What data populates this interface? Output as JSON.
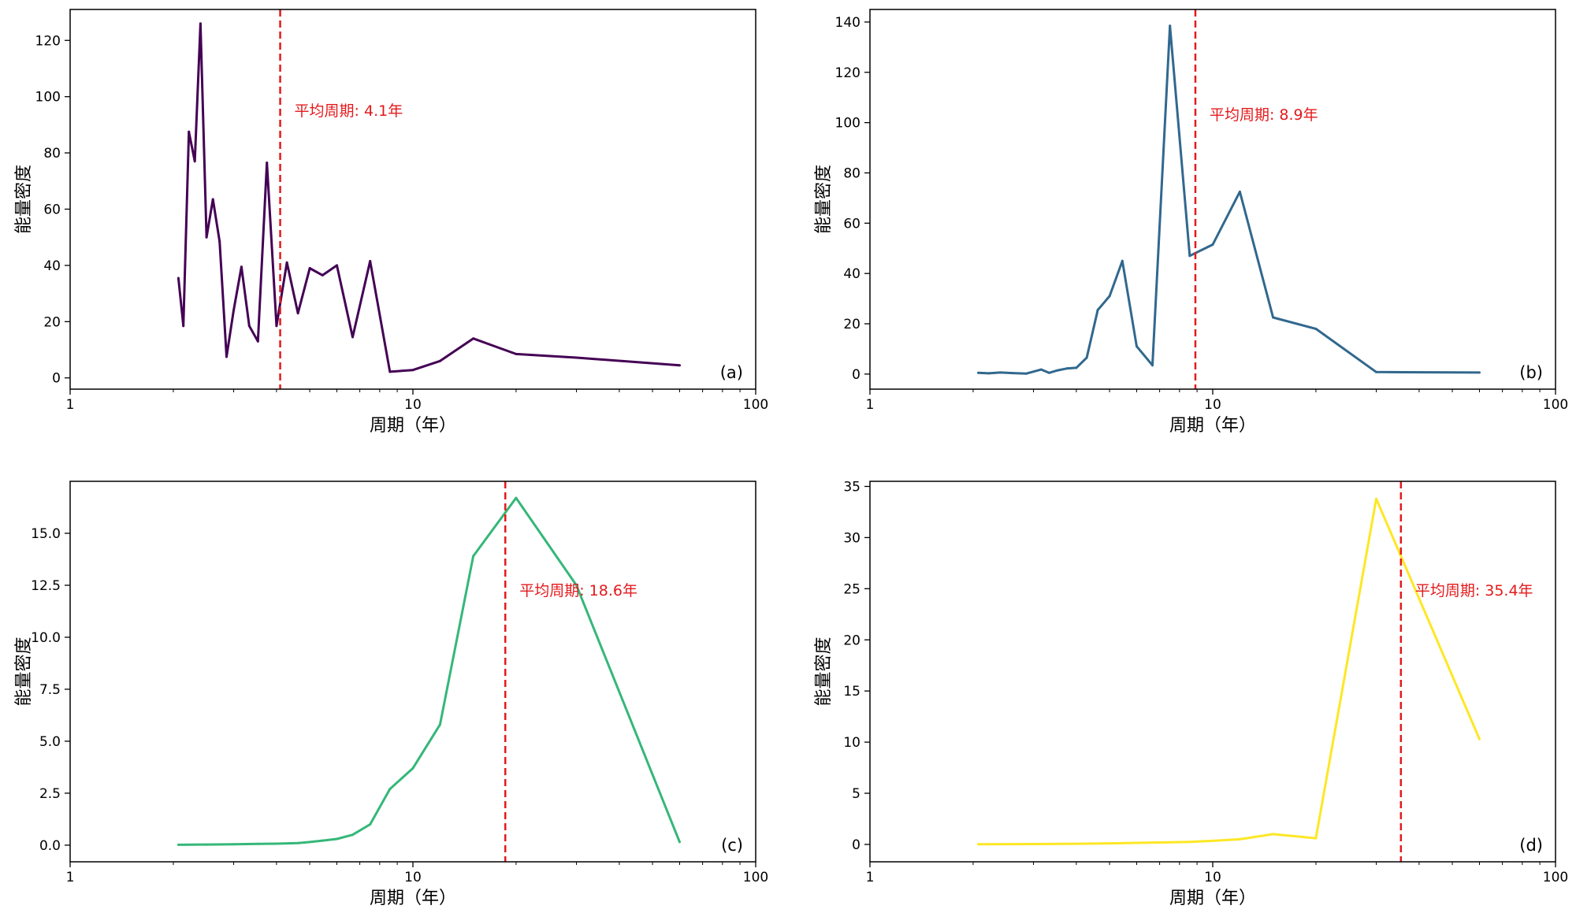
{
  "chart_data": [
    {
      "type": "line",
      "panel_label": "(a)",
      "xlabel": "周期（年）",
      "ylabel": "能量密度",
      "x_scale": "log",
      "xlim": [
        1,
        100
      ],
      "ylim": [
        -4,
        131
      ],
      "x_ticks": [
        1,
        10,
        100
      ],
      "x_tick_labels": [
        "1",
        "10",
        "100"
      ],
      "y_ticks": [
        0,
        20,
        40,
        60,
        80,
        100,
        120
      ],
      "y_tick_labels": [
        "0",
        "20",
        "40",
        "60",
        "80",
        "100",
        "120"
      ],
      "color": "#440154",
      "x": [
        2.07,
        2.14,
        2.22,
        2.31,
        2.4,
        2.5,
        2.61,
        2.73,
        2.86,
        3.0,
        3.16,
        3.33,
        3.53,
        3.75,
        4.0,
        4.29,
        4.62,
        5.0,
        5.45,
        6.0,
        6.67,
        7.5,
        8.57,
        10.0,
        12.0,
        15.0,
        20.0,
        30.0,
        60.0
      ],
      "y": [
        35.5,
        18.5,
        87.5,
        77,
        126,
        50,
        63.5,
        48.5,
        7.5,
        24,
        39.5,
        18.5,
        13,
        76.5,
        18.5,
        41,
        23,
        39,
        36.5,
        40,
        14.5,
        41.5,
        2.2,
        2.8,
        6,
        14,
        8.5,
        7.2,
        4.5
      ],
      "mean_period": 4.1,
      "mean_label": "平均周期: 4.1年"
    },
    {
      "type": "line",
      "panel_label": "(b)",
      "xlabel": "周期（年）",
      "ylabel": "能量密度",
      "x_scale": "log",
      "xlim": [
        1,
        100
      ],
      "ylim": [
        -6,
        145
      ],
      "x_ticks": [
        1,
        10,
        100
      ],
      "x_tick_labels": [
        "1",
        "10",
        "100"
      ],
      "y_ticks": [
        0,
        20,
        40,
        60,
        80,
        100,
        120,
        140
      ],
      "y_tick_labels": [
        "0",
        "20",
        "40",
        "60",
        "80",
        "100",
        "120",
        "140"
      ],
      "color": "#31688e",
      "x": [
        2.07,
        2.22,
        2.4,
        2.61,
        2.86,
        3.16,
        3.33,
        3.53,
        3.75,
        4.0,
        4.29,
        4.62,
        5.0,
        5.45,
        6.0,
        6.67,
        7.5,
        8.57,
        10.0,
        12.0,
        15.0,
        20.0,
        30.0,
        60.0
      ],
      "y": [
        0.5,
        0.3,
        0.6,
        0.4,
        0.2,
        1.8,
        0.5,
        1.5,
        2.2,
        2.5,
        6.5,
        25.5,
        31,
        45,
        11,
        3.5,
        138.5,
        47,
        51.5,
        72.5,
        22.5,
        18,
        0.8,
        0.6
      ],
      "mean_period": 8.9,
      "mean_label": "平均周期: 8.9年"
    },
    {
      "type": "line",
      "panel_label": "(c)",
      "xlabel": "周期（年）",
      "ylabel": "能量密度",
      "x_scale": "log",
      "xlim": [
        1,
        100
      ],
      "ylim": [
        -0.8,
        17.5
      ],
      "x_ticks": [
        1,
        10,
        100
      ],
      "x_tick_labels": [
        "1",
        "10",
        "100"
      ],
      "y_ticks": [
        0,
        2.5,
        5.0,
        7.5,
        10.0,
        12.5,
        15.0
      ],
      "y_tick_labels": [
        "0.0",
        "2.5",
        "5.0",
        "7.5",
        "10.0",
        "12.5",
        "15.0"
      ],
      "color": "#35b779",
      "x": [
        2.07,
        2.5,
        3.0,
        3.53,
        4.0,
        4.62,
        5.0,
        5.45,
        6.0,
        6.67,
        7.5,
        8.57,
        10.0,
        12.0,
        15.0,
        20.0,
        30.0,
        60.0
      ],
      "y": [
        0.02,
        0.03,
        0.04,
        0.06,
        0.07,
        0.1,
        0.15,
        0.22,
        0.3,
        0.5,
        1.0,
        2.7,
        3.7,
        5.8,
        13.9,
        16.7,
        12.5,
        0.15
      ],
      "mean_period": 18.6,
      "mean_label": "平均周期: 18.6年"
    },
    {
      "type": "line",
      "panel_label": "(d)",
      "xlabel": "周期（年）",
      "ylabel": "能量密度",
      "x_scale": "log",
      "xlim": [
        1,
        100
      ],
      "ylim": [
        -1.7,
        35.5
      ],
      "x_ticks": [
        1,
        10,
        100
      ],
      "x_tick_labels": [
        "1",
        "10",
        "100"
      ],
      "y_ticks": [
        0,
        5,
        10,
        15,
        20,
        25,
        30,
        35
      ],
      "y_tick_labels": [
        "0",
        "5",
        "10",
        "15",
        "20",
        "25",
        "30",
        "35"
      ],
      "color": "#fde725",
      "x": [
        2.07,
        3.0,
        4.0,
        5.0,
        6.0,
        7.5,
        8.57,
        10.0,
        12.0,
        15.0,
        20.0,
        30.0,
        60.0
      ],
      "y": [
        0.02,
        0.03,
        0.06,
        0.1,
        0.15,
        0.2,
        0.25,
        0.35,
        0.5,
        1.0,
        0.6,
        33.8,
        10.3
      ],
      "mean_period": 35.4,
      "mean_label": "平均周期: 35.4年"
    }
  ],
  "colors": {
    "mean_line": "#e31a1c",
    "axes": "#000000"
  }
}
